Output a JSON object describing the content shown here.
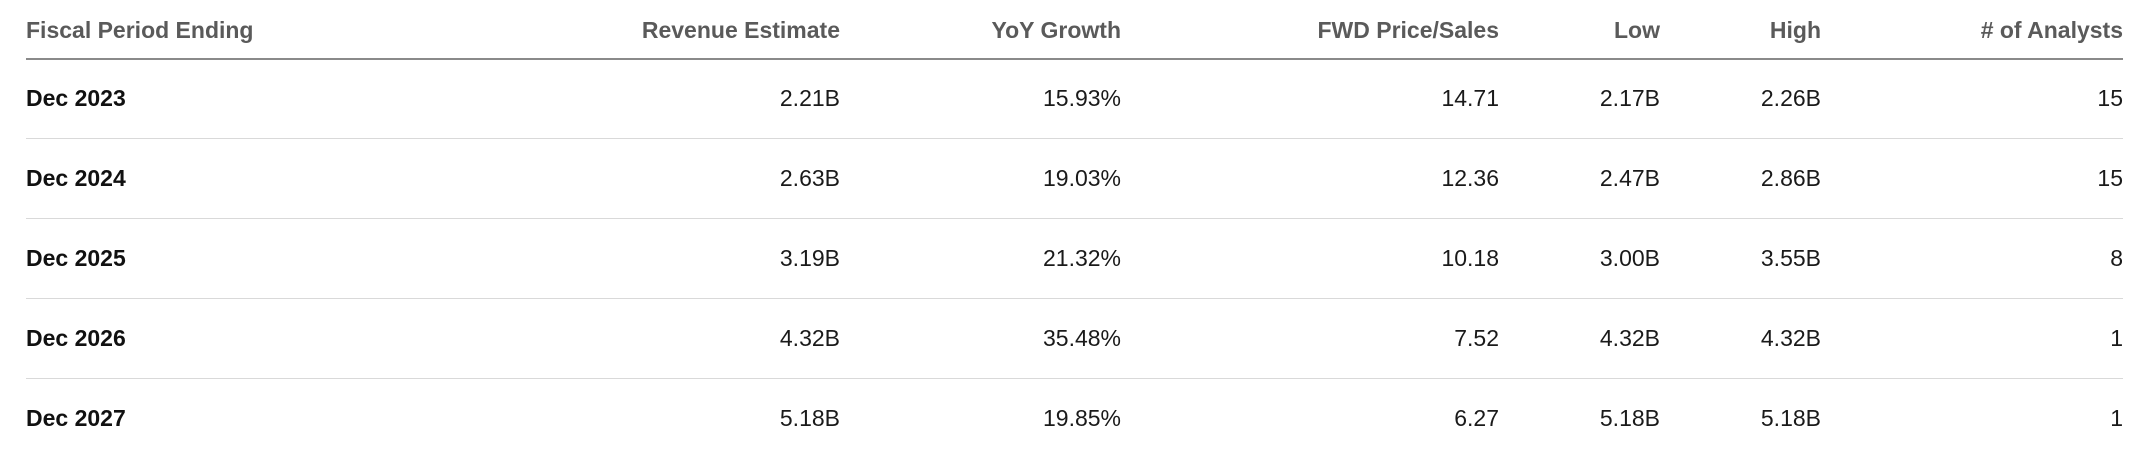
{
  "table": {
    "columns": [
      "Fiscal Period Ending",
      "Revenue Estimate",
      "YoY Growth",
      "FWD Price/Sales",
      "Low",
      "High",
      "# of Analysts"
    ],
    "rows": [
      [
        "Dec 2023",
        "2.21B",
        "15.93%",
        "14.71",
        "2.17B",
        "2.26B",
        "15"
      ],
      [
        "Dec 2024",
        "2.63B",
        "19.03%",
        "12.36",
        "2.47B",
        "2.86B",
        "15"
      ],
      [
        "Dec 2025",
        "3.19B",
        "21.32%",
        "10.18",
        "3.00B",
        "3.55B",
        "8"
      ],
      [
        "Dec 2026",
        "4.32B",
        "35.48%",
        "7.52",
        "4.32B",
        "4.32B",
        "1"
      ],
      [
        "Dec 2027",
        "5.18B",
        "19.85%",
        "6.27",
        "5.18B",
        "5.18B",
        "1"
      ]
    ]
  }
}
